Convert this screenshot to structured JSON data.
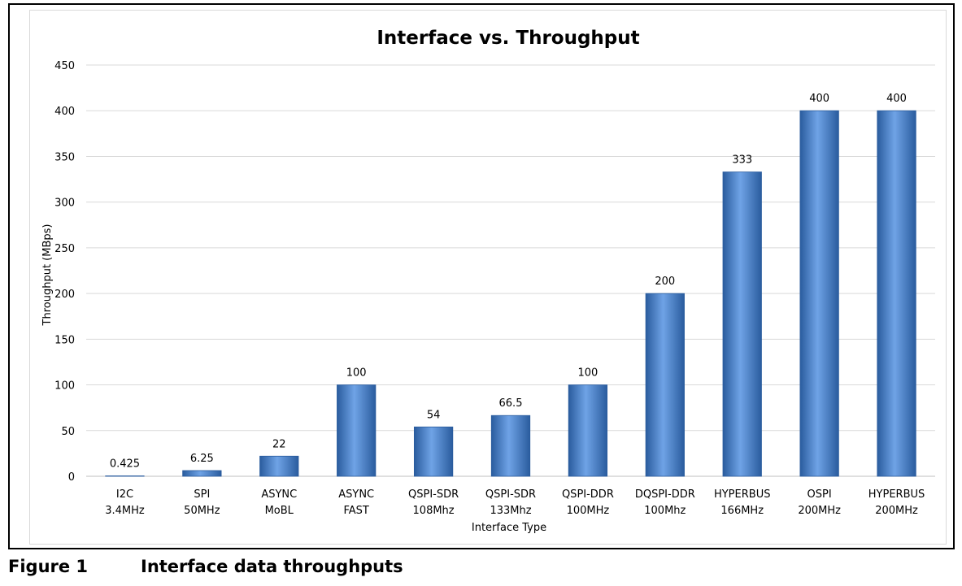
{
  "figure": {
    "number": "Figure 1",
    "caption": "Interface data throughputs"
  },
  "colors": {
    "bar": "#3f7ccc",
    "bar_dark": "#2a5c9e",
    "bar_light": "#6fa3e6",
    "grid": "#d9d9d9",
    "text": "#000000"
  },
  "chart_data": {
    "type": "bar",
    "title": "Interface vs. Throughput",
    "xlabel": "Interface Type",
    "ylabel": "Throughput (MBps)",
    "ylim": [
      0,
      450
    ],
    "yticks": [
      "0",
      "50",
      "100",
      "150",
      "200",
      "250",
      "300",
      "350",
      "400",
      "450"
    ],
    "grid": true,
    "categories": [
      [
        "I2C",
        "3.4MHz"
      ],
      [
        "SPI",
        "50MHz"
      ],
      [
        "ASYNC",
        "MoBL"
      ],
      [
        "ASYNC",
        "FAST"
      ],
      [
        "QSPI-SDR",
        "108Mhz"
      ],
      [
        "QSPI-SDR",
        "133Mhz"
      ],
      [
        "QSPI-DDR",
        "100MHz"
      ],
      [
        "DQSPI-DDR",
        "100Mhz"
      ],
      [
        "HYPERBUS",
        "166MHz"
      ],
      [
        "OSPI",
        "200MHz"
      ],
      [
        "HYPERBUS",
        "200MHz"
      ]
    ],
    "values": [
      0.425,
      6.25,
      22,
      100,
      54,
      66.5,
      100,
      200,
      333,
      400,
      400
    ],
    "data_labels": [
      "0.425",
      "6.25",
      "22",
      "100",
      "54",
      "66.5",
      "100",
      "200",
      "333",
      "400",
      "400"
    ]
  }
}
